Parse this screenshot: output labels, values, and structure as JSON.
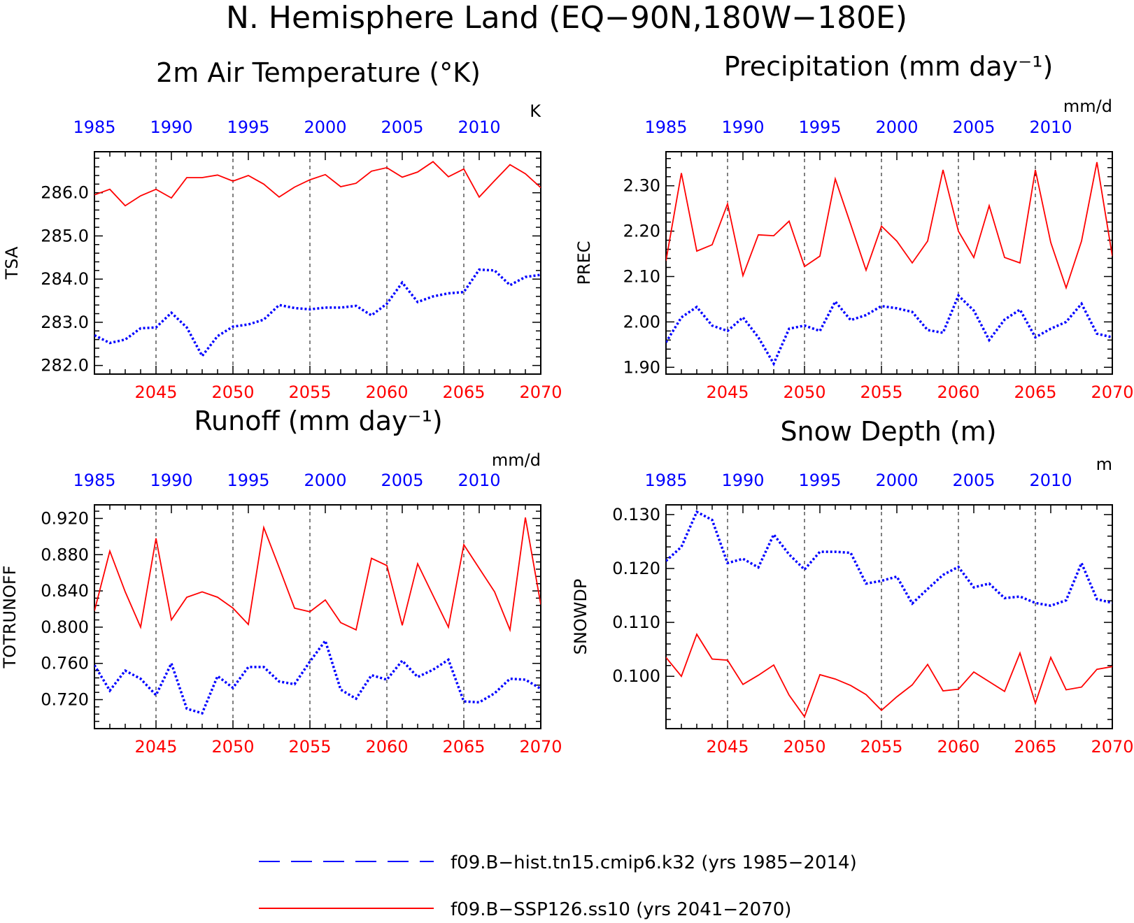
{
  "page": {
    "title": "N. Hemisphere Land (EQ−90N,180W−180E)"
  },
  "legend": [
    {
      "label": "f09.B−hist.tn15.cmip6.k32 (yrs 1985−2014)",
      "color": "#0000ff",
      "style": "dashed"
    },
    {
      "label": "f09.B−SSP126.ss10 (yrs 2041−2070)",
      "color": "#ff0000",
      "style": "solid"
    }
  ],
  "colors": {
    "hist": "#0000ff",
    "ssp": "#ff0000",
    "axis": "#000000",
    "grid": "#000000"
  },
  "chart_data": [
    {
      "type": "line",
      "title": "2m Air Temperature (°K)",
      "ylabel": "TSA",
      "units": "K",
      "ylim": [
        281.8,
        286.95
      ],
      "yticks": [
        282.0,
        283.0,
        284.0,
        285.0,
        286.0
      ],
      "ytick_labels": [
        "282.0",
        "283.0",
        "284.0",
        "285.0",
        "286.0"
      ],
      "top_axis": {
        "labels": [
          "1985",
          "1990",
          "1995",
          "2000",
          "2005",
          "2010"
        ],
        "color": "#0000ff"
      },
      "bottom_axis": {
        "labels": [
          "2045",
          "2050",
          "2055",
          "2060",
          "2065",
          "2070"
        ],
        "color": "#ff0000"
      },
      "x_hist": [
        1985,
        1986,
        1987,
        1988,
        1989,
        1990,
        1991,
        1992,
        1993,
        1994,
        1995,
        1996,
        1997,
        1998,
        1999,
        2000,
        2001,
        2002,
        2003,
        2004,
        2005,
        2006,
        2007,
        2008,
        2009,
        2010,
        2011,
        2012,
        2013,
        2014
      ],
      "x_ssp": [
        2041,
        2042,
        2043,
        2044,
        2045,
        2046,
        2047,
        2048,
        2049,
        2050,
        2051,
        2052,
        2053,
        2054,
        2055,
        2056,
        2057,
        2058,
        2059,
        2060,
        2061,
        2062,
        2063,
        2064,
        2065,
        2066,
        2067,
        2068,
        2069,
        2070
      ],
      "series": [
        {
          "name": "f09.B−hist.tn15.cmip6.k32 (yrs 1985−2014)",
          "values": [
            282.7,
            282.52,
            282.6,
            282.86,
            282.88,
            283.22,
            282.88,
            282.22,
            282.68,
            282.9,
            282.95,
            283.06,
            283.4,
            283.33,
            283.3,
            283.34,
            283.34,
            283.38,
            283.16,
            283.43,
            283.92,
            283.47,
            283.6,
            283.67,
            283.7,
            284.22,
            284.2,
            283.86,
            284.05,
            284.1
          ]
        },
        {
          "name": "f09.B−SSP126.ss10 (yrs 2041−2070)",
          "values": [
            285.95,
            286.08,
            285.7,
            285.93,
            286.08,
            285.88,
            286.35,
            286.35,
            286.41,
            286.27,
            286.4,
            286.2,
            285.9,
            286.13,
            286.3,
            286.42,
            286.14,
            286.22,
            286.5,
            286.58,
            286.36,
            286.48,
            286.72,
            286.37,
            286.55,
            285.9,
            286.28,
            286.65,
            286.44,
            286.12
          ]
        }
      ]
    },
    {
      "type": "line",
      "title": "Precipitation (mm day⁻¹)",
      "ylabel": "PREC",
      "units": "mm/d",
      "ylim": [
        1.885,
        2.375
      ],
      "yticks": [
        1.9,
        2.0,
        2.1,
        2.2,
        2.3
      ],
      "ytick_labels": [
        "1.90",
        "2.00",
        "2.10",
        "2.20",
        "2.30"
      ],
      "top_axis": {
        "labels": [
          "1985",
          "1990",
          "1995",
          "2000",
          "2005",
          "2010"
        ],
        "color": "#0000ff"
      },
      "bottom_axis": {
        "labels": [
          "2045",
          "2050",
          "2055",
          "2060",
          "2065",
          "2070"
        ],
        "color": "#ff0000"
      },
      "x_hist": [
        1985,
        1986,
        1987,
        1988,
        1989,
        1990,
        1991,
        1992,
        1993,
        1994,
        1995,
        1996,
        1997,
        1998,
        1999,
        2000,
        2001,
        2002,
        2003,
        2004,
        2005,
        2006,
        2007,
        2008,
        2009,
        2010,
        2011,
        2012,
        2013,
        2014
      ],
      "x_ssp": [
        2041,
        2042,
        2043,
        2044,
        2045,
        2046,
        2047,
        2048,
        2049,
        2050,
        2051,
        2052,
        2053,
        2054,
        2055,
        2056,
        2057,
        2058,
        2059,
        2060,
        2061,
        2062,
        2063,
        2064,
        2065,
        2066,
        2067,
        2068,
        2069,
        2070
      ],
      "series": [
        {
          "name": "f09.B−hist.tn15.cmip6.k32 (yrs 1985−2014)",
          "values": [
            1.955,
            2.01,
            2.033,
            1.992,
            1.98,
            2.01,
            1.966,
            1.908,
            1.985,
            1.992,
            1.98,
            2.045,
            2.004,
            2.015,
            2.035,
            2.03,
            2.022,
            1.982,
            1.976,
            2.058,
            2.025,
            1.96,
            2.005,
            2.027,
            1.966,
            1.985,
            2.0,
            2.04,
            1.974,
            1.966
          ]
        },
        {
          "name": "f09.B−SSP126.ss10 (yrs 2041−2070)",
          "values": [
            2.135,
            2.328,
            2.156,
            2.17,
            2.26,
            2.102,
            2.192,
            2.19,
            2.222,
            2.122,
            2.145,
            2.315,
            2.215,
            2.114,
            2.211,
            2.178,
            2.13,
            2.178,
            2.335,
            2.2,
            2.142,
            2.256,
            2.142,
            2.13,
            2.335,
            2.175,
            2.075,
            2.178,
            2.352,
            2.145
          ]
        }
      ]
    },
    {
      "type": "line",
      "title": "Runoff (mm day⁻¹)",
      "ylabel": "TOTRUNOFF",
      "units": "mm/d",
      "ylim": [
        0.688,
        0.935
      ],
      "yticks": [
        0.72,
        0.76,
        0.8,
        0.84,
        0.88,
        0.92
      ],
      "ytick_labels": [
        "0.720",
        "0.760",
        "0.800",
        "0.840",
        "0.880",
        "0.920"
      ],
      "top_axis": {
        "labels": [
          "1985",
          "1990",
          "1995",
          "2000",
          "2005",
          "2010"
        ],
        "color": "#0000ff"
      },
      "bottom_axis": {
        "labels": [
          "2045",
          "2050",
          "2055",
          "2060",
          "2065",
          "2070"
        ],
        "color": "#ff0000"
      },
      "x_hist": [
        1985,
        1986,
        1987,
        1988,
        1989,
        1990,
        1991,
        1992,
        1993,
        1994,
        1995,
        1996,
        1997,
        1998,
        1999,
        2000,
        2001,
        2002,
        2003,
        2004,
        2005,
        2006,
        2007,
        2008,
        2009,
        2010,
        2011,
        2012,
        2013,
        2014
      ],
      "x_ssp": [
        2041,
        2042,
        2043,
        2044,
        2045,
        2046,
        2047,
        2048,
        2049,
        2050,
        2051,
        2052,
        2053,
        2054,
        2055,
        2056,
        2057,
        2058,
        2059,
        2060,
        2061,
        2062,
        2063,
        2064,
        2065,
        2066,
        2067,
        2068,
        2069,
        2070
      ],
      "series": [
        {
          "name": "f09.B−hist.tn15.cmip6.k32 (yrs 1985−2014)",
          "values": [
            0.758,
            0.73,
            0.752,
            0.743,
            0.725,
            0.76,
            0.71,
            0.705,
            0.746,
            0.733,
            0.756,
            0.756,
            0.74,
            0.737,
            0.762,
            0.785,
            0.731,
            0.721,
            0.747,
            0.742,
            0.763,
            0.745,
            0.753,
            0.764,
            0.718,
            0.717,
            0.727,
            0.743,
            0.742,
            0.732
          ]
        },
        {
          "name": "f09.B−SSP126.ss10 (yrs 2041−2070)",
          "values": [
            0.818,
            0.884,
            0.839,
            0.8,
            0.898,
            0.808,
            0.833,
            0.839,
            0.833,
            0.821,
            0.803,
            0.91,
            0.866,
            0.821,
            0.817,
            0.83,
            0.805,
            0.797,
            0.876,
            0.868,
            0.802,
            0.87,
            0.835,
            0.8,
            0.891,
            0.865,
            0.839,
            0.797,
            0.921,
            0.825
          ]
        }
      ]
    },
    {
      "type": "line",
      "title": "Snow Depth (m)",
      "ylabel": "SNOWDP",
      "units": "m",
      "ylim": [
        0.0903,
        0.1318
      ],
      "yticks": [
        0.1,
        0.11,
        0.12,
        0.13
      ],
      "ytick_labels": [
        "0.100",
        "0.110",
        "0.120",
        "0.130"
      ],
      "top_axis": {
        "labels": [
          "1985",
          "1990",
          "1995",
          "2000",
          "2005",
          "2010"
        ],
        "color": "#0000ff"
      },
      "bottom_axis": {
        "labels": [
          "2045",
          "2050",
          "2055",
          "2060",
          "2065",
          "2070"
        ],
        "color": "#ff0000"
      },
      "x_hist": [
        1985,
        1986,
        1987,
        1988,
        1989,
        1990,
        1991,
        1992,
        1993,
        1994,
        1995,
        1996,
        1997,
        1998,
        1999,
        2000,
        2001,
        2002,
        2003,
        2004,
        2005,
        2006,
        2007,
        2008,
        2009,
        2010,
        2011,
        2012,
        2013,
        2014
      ],
      "x_ssp": [
        2041,
        2042,
        2043,
        2044,
        2045,
        2046,
        2047,
        2048,
        2049,
        2050,
        2051,
        2052,
        2053,
        2054,
        2055,
        2056,
        2057,
        2058,
        2059,
        2060,
        2061,
        2062,
        2063,
        2064,
        2065,
        2066,
        2067,
        2068,
        2069,
        2070
      ],
      "series": [
        {
          "name": "f09.B−hist.tn15.cmip6.k32 (yrs 1985−2014)",
          "values": [
            0.1214,
            0.124,
            0.1305,
            0.129,
            0.121,
            0.1218,
            0.1202,
            0.1263,
            0.1226,
            0.1198,
            0.1231,
            0.1231,
            0.1229,
            0.1172,
            0.1177,
            0.1185,
            0.1135,
            0.1162,
            0.1188,
            0.1203,
            0.1165,
            0.1172,
            0.1145,
            0.1148,
            0.1136,
            0.1131,
            0.1141,
            0.121,
            0.1143,
            0.1136
          ]
        },
        {
          "name": "f09.B−SSP126.ss10 (yrs 2041−2070)",
          "values": [
            0.1035,
            0.1,
            0.1078,
            0.1032,
            0.103,
            0.0985,
            0.1002,
            0.1021,
            0.0965,
            0.0925,
            0.1003,
            0.0995,
            0.0983,
            0.0966,
            0.0937,
            0.0962,
            0.0984,
            0.1022,
            0.0973,
            0.0976,
            0.1008,
            0.099,
            0.0972,
            0.1043,
            0.095,
            0.1035,
            0.0975,
            0.098,
            0.1013,
            0.1018
          ]
        }
      ]
    }
  ]
}
